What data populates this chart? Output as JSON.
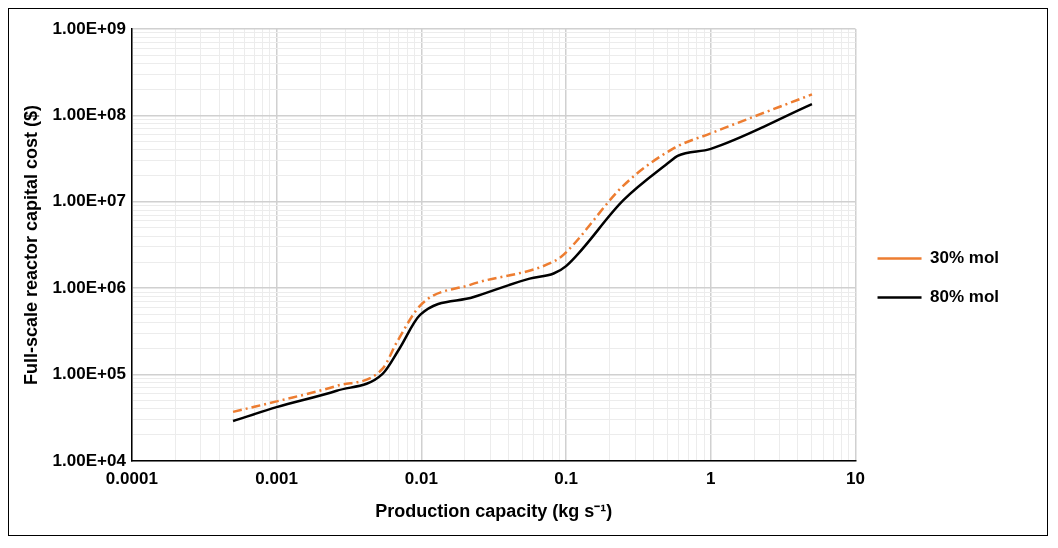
{
  "chart_data": {
    "type": "line",
    "xlabel": "Production capacity (kg s⁻¹)",
    "ylabel": "Full-scale reactor capital cost ($)",
    "log": "xy",
    "grid": true,
    "legend": "right",
    "marker": "none",
    "xlim": [
      0.0001,
      10
    ],
    "ylim": [
      10000,
      1000000000
    ],
    "xticks": [
      {
        "value": 0.0001,
        "label": "0.0001"
      },
      {
        "value": 0.0002,
        "label": null
      },
      {
        "value": 0.0003,
        "label": null
      },
      {
        "value": 0.0004,
        "label": null
      },
      {
        "value": 0.0005,
        "label": null
      },
      {
        "value": 0.0006,
        "label": null
      },
      {
        "value": 0.0007,
        "label": null
      },
      {
        "value": 0.0008,
        "label": null
      },
      {
        "value": 0.0009,
        "label": null
      },
      {
        "value": 0.001,
        "label": "0.001"
      },
      {
        "value": 0.002,
        "label": null
      },
      {
        "value": 0.003,
        "label": null
      },
      {
        "value": 0.004,
        "label": null
      },
      {
        "value": 0.005,
        "label": null
      },
      {
        "value": 0.006,
        "label": null
      },
      {
        "value": 0.007,
        "label": null
      },
      {
        "value": 0.008,
        "label": null
      },
      {
        "value": 0.009,
        "label": null
      },
      {
        "value": 0.01,
        "label": "0.01"
      },
      {
        "value": 0.02,
        "label": null
      },
      {
        "value": 0.03,
        "label": null
      },
      {
        "value": 0.04,
        "label": null
      },
      {
        "value": 0.05,
        "label": null
      },
      {
        "value": 0.06,
        "label": null
      },
      {
        "value": 0.07,
        "label": null
      },
      {
        "value": 0.08,
        "label": null
      },
      {
        "value": 0.09,
        "label": null
      },
      {
        "value": 0.1,
        "label": "0.1"
      },
      {
        "value": 0.2,
        "label": null
      },
      {
        "value": 0.3,
        "label": null
      },
      {
        "value": 0.4,
        "label": null
      },
      {
        "value": 0.5,
        "label": null
      },
      {
        "value": 0.6,
        "label": null
      },
      {
        "value": 0.7,
        "label": null
      },
      {
        "value": 0.8,
        "label": null
      },
      {
        "value": 0.9,
        "label": null
      },
      {
        "value": 1,
        "label": "1"
      },
      {
        "value": 2,
        "label": null
      },
      {
        "value": 3,
        "label": null
      },
      {
        "value": 4,
        "label": null
      },
      {
        "value": 5,
        "label": null
      },
      {
        "value": 6,
        "label": null
      },
      {
        "value": 7,
        "label": null
      },
      {
        "value": 8,
        "label": null
      },
      {
        "value": 9,
        "label": null
      },
      {
        "value": 10,
        "label": "10"
      }
    ],
    "yticks": [
      {
        "value": 10000,
        "label": "1.00E+04"
      },
      {
        "value": 20000,
        "label": null
      },
      {
        "value": 30000,
        "label": null
      },
      {
        "value": 40000,
        "label": null
      },
      {
        "value": 50000,
        "label": null
      },
      {
        "value": 60000,
        "label": null
      },
      {
        "value": 70000,
        "label": null
      },
      {
        "value": 80000,
        "label": null
      },
      {
        "value": 90000,
        "label": null
      },
      {
        "value": 100000,
        "label": "1.00E+05"
      },
      {
        "value": 200000,
        "label": null
      },
      {
        "value": 300000,
        "label": null
      },
      {
        "value": 400000,
        "label": null
      },
      {
        "value": 500000,
        "label": null
      },
      {
        "value": 600000,
        "label": null
      },
      {
        "value": 700000,
        "label": null
      },
      {
        "value": 800000,
        "label": null
      },
      {
        "value": 900000,
        "label": null
      },
      {
        "value": 1000000,
        "label": "1.00E+06"
      },
      {
        "value": 2000000,
        "label": null
      },
      {
        "value": 3000000,
        "label": null
      },
      {
        "value": 4000000,
        "label": null
      },
      {
        "value": 5000000,
        "label": null
      },
      {
        "value": 6000000,
        "label": null
      },
      {
        "value": 7000000,
        "label": null
      },
      {
        "value": 8000000,
        "label": null
      },
      {
        "value": 9000000,
        "label": null
      },
      {
        "value": 10000000,
        "label": "1.00E+07"
      },
      {
        "value": 20000000,
        "label": null
      },
      {
        "value": 30000000,
        "label": null
      },
      {
        "value": 40000000,
        "label": null
      },
      {
        "value": 50000000,
        "label": null
      },
      {
        "value": 60000000,
        "label": null
      },
      {
        "value": 70000000,
        "label": null
      },
      {
        "value": 80000000,
        "label": null
      },
      {
        "value": 90000000,
        "label": null
      },
      {
        "value": 100000000,
        "label": "1.00E+08"
      },
      {
        "value": 200000000,
        "label": null
      },
      {
        "value": 300000000,
        "label": null
      },
      {
        "value": 400000000,
        "label": null
      },
      {
        "value": 500000000,
        "label": null
      },
      {
        "value": 600000000,
        "label": null
      },
      {
        "value": 700000000,
        "label": null
      },
      {
        "value": 800000000,
        "label": null
      },
      {
        "value": 900000000,
        "label": null
      },
      {
        "value": 1000000000,
        "label": "1.00E+09"
      }
    ],
    "series": [
      {
        "name": "30% mol",
        "color": "#ed7d31",
        "line_style": "dashed",
        "x": [
          0.0005,
          0.001,
          0.0026,
          0.0054,
          0.0068,
          0.01,
          0.022,
          0.085,
          0.1,
          0.25,
          0.56,
          1,
          5
        ],
        "values": [
          37000,
          49000,
          74000,
          117000,
          240000,
          650000,
          1100000,
          2100000,
          2600000,
          15500000,
          42000000,
          62000000,
          175000000
        ]
      },
      {
        "name": "80% mol",
        "color": "#000000",
        "line_style": "solid",
        "x": [
          0.0005,
          0.001,
          0.0026,
          0.0054,
          0.007,
          0.0098,
          0.023,
          0.056,
          0.082,
          0.1,
          0.25,
          0.52,
          0.59,
          1,
          5
        ],
        "values": [
          29000,
          42000,
          65000,
          102000,
          195000,
          490000,
          790000,
          1290000,
          1480000,
          1800000,
          10500000,
          29000000,
          34000000,
          41000000,
          135000000
        ]
      }
    ]
  }
}
